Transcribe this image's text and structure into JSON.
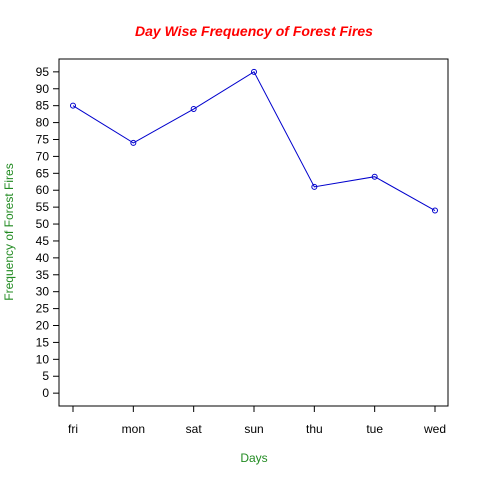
{
  "chart_data": {
    "type": "line",
    "title": "Day Wise Frequency of Forest Fires",
    "xlabel": "Days",
    "ylabel": "Frequency of Forest Fires",
    "categories": [
      "fri",
      "mon",
      "sat",
      "sun",
      "thu",
      "tue",
      "wed"
    ],
    "series": [
      {
        "values": [
          85,
          74,
          84,
          95,
          61,
          64,
          54
        ]
      }
    ],
    "y_ticks": [
      0,
      5,
      10,
      15,
      20,
      25,
      30,
      35,
      40,
      45,
      50,
      55,
      60,
      65,
      70,
      75,
      80,
      85,
      90,
      95
    ],
    "ylim": [
      -3.8,
      98.8
    ],
    "grid": false,
    "legend": "none",
    "colors": {
      "title": "#ff0000",
      "axis_labels": "#228b22",
      "line": "#0000cd",
      "points": "#0000cd",
      "axes": "#000000"
    }
  }
}
